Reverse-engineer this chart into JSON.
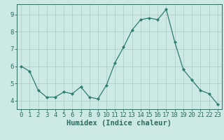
{
  "x": [
    0,
    1,
    2,
    3,
    4,
    5,
    6,
    7,
    8,
    9,
    10,
    11,
    12,
    13,
    14,
    15,
    16,
    17,
    18,
    19,
    20,
    21,
    22,
    23
  ],
  "y": [
    6.0,
    5.7,
    4.6,
    4.2,
    4.2,
    4.5,
    4.4,
    4.8,
    4.2,
    4.1,
    4.9,
    6.2,
    7.1,
    8.1,
    8.7,
    8.8,
    8.7,
    9.3,
    7.4,
    5.8,
    5.2,
    4.6,
    4.4,
    3.8
  ],
  "line_color": "#2e7d6e",
  "marker": "D",
  "marker_size": 2.2,
  "bg_color": "#cce9e5",
  "grid_color": "#b0ceca",
  "xlabel": "Humidex (Indice chaleur)",
  "xlim": [
    -0.5,
    23.5
  ],
  "ylim": [
    3.5,
    9.6
  ],
  "yticks": [
    4,
    5,
    6,
    7,
    8,
    9
  ],
  "xticks": [
    0,
    1,
    2,
    3,
    4,
    5,
    6,
    7,
    8,
    9,
    10,
    11,
    12,
    13,
    14,
    15,
    16,
    17,
    18,
    19,
    20,
    21,
    22,
    23
  ],
  "tick_color": "#2e6b5e",
  "label_fontsize": 6.5,
  "axis_label_fontsize": 7.5
}
